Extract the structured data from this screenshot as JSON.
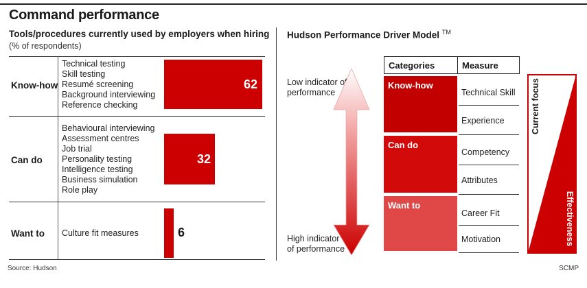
{
  "header": {
    "title": "Command performance"
  },
  "left": {
    "subtitle": "Tools/procedures currently used by employers when hiring",
    "unit": "(% of respondents)"
  },
  "chart_data": {
    "type": "bar",
    "orientation": "horizontal",
    "title": "Tools/procedures currently used by employers when hiring",
    "subtitle": "(% of respondents)",
    "categories": [
      "Know-how",
      "Can do",
      "Want to"
    ],
    "values": [
      62,
      32,
      6
    ],
    "color": "#cc0000",
    "xlim": [
      0,
      100
    ],
    "tools": [
      [
        "Technical testing",
        "Skill testing",
        "Resumé screening",
        "Background interviewing",
        "Reference checking"
      ],
      [
        "Behavioural interviewing",
        "Assessment centres",
        "Job trial",
        "Personality testing",
        "Intelligence testing",
        "Business simulation",
        "Role play"
      ],
      [
        "Culture fit measures"
      ]
    ]
  },
  "model": {
    "title": "Hudson Performance Driver Model",
    "tm": "TM",
    "low_indicator": "Low indicator of performance",
    "high_indicator": "High indicator of performance",
    "header_categories": "Categories",
    "header_measure": "Measure",
    "rows": [
      {
        "category": "Know-how",
        "measures": [
          "Technical Skill",
          "Experience"
        ],
        "color": "#c20000"
      },
      {
        "category": "Can do",
        "measures": [
          "Competency",
          "Attributes"
        ],
        "color": "#d30a0a"
      },
      {
        "category": "Want to",
        "measures": [
          "Career Fit",
          "Motivation"
        ],
        "color": "#e04848"
      }
    ],
    "current_focus": "Current focus",
    "effectiveness": "Effectiveness"
  },
  "footer": {
    "source": "Source: Hudson",
    "credit": "SCMP"
  }
}
